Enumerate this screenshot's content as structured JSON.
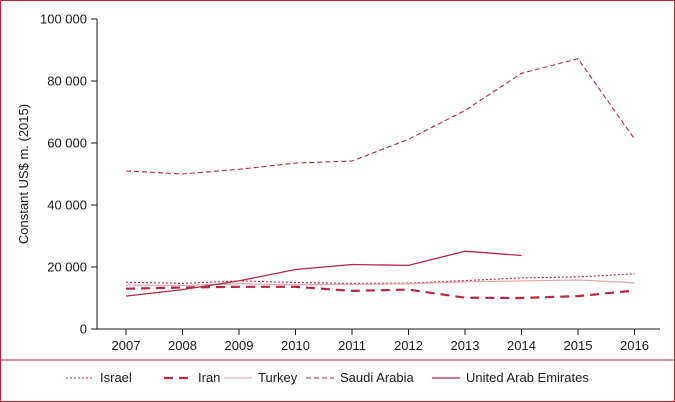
{
  "chart_data": {
    "type": "line",
    "title": "",
    "xlabel": "",
    "ylabel": "Constant US$ m. (2015)",
    "x": [
      "2007",
      "2008",
      "2009",
      "2010",
      "2011",
      "2012",
      "2013",
      "2014",
      "2015",
      "2016"
    ],
    "ylim": [
      0,
      100000
    ],
    "yticks": [
      0,
      20000,
      40000,
      60000,
      80000,
      100000
    ],
    "ytick_labels": [
      "0",
      "20 000",
      "40 000",
      "60 000",
      "80 000",
      "100 000"
    ],
    "grid": false,
    "legend_position": "bottom",
    "series": [
      {
        "name": "Israel",
        "style": "dotted",
        "color": "#b3283f",
        "values": [
          15100,
          14700,
          15500,
          15000,
          14700,
          14800,
          15600,
          16500,
          16800,
          17800
        ]
      },
      {
        "name": "Iran",
        "style": "dashed-heavy",
        "color": "#b3283f",
        "values": [
          13000,
          13400,
          13600,
          13600,
          12300,
          12700,
          10100,
          10000,
          10600,
          12400
        ]
      },
      {
        "name": "Turkey",
        "style": "solid-light",
        "color": "#e3a9b0",
        "values": [
          14200,
          14000,
          14600,
          14300,
          14400,
          14600,
          15200,
          15500,
          15800,
          14900
        ]
      },
      {
        "name": "Saudi Arabia",
        "style": "dashed",
        "color": "#b3283f",
        "values": [
          51000,
          50000,
          51500,
          53500,
          54200,
          61200,
          70500,
          82500,
          87200,
          61300
        ]
      },
      {
        "name": "United Arab Emirates",
        "style": "solid",
        "color": "#b3283f",
        "values": [
          10600,
          12700,
          15500,
          19200,
          20800,
          20500,
          25100,
          23700,
          null,
          null
        ]
      }
    ]
  }
}
